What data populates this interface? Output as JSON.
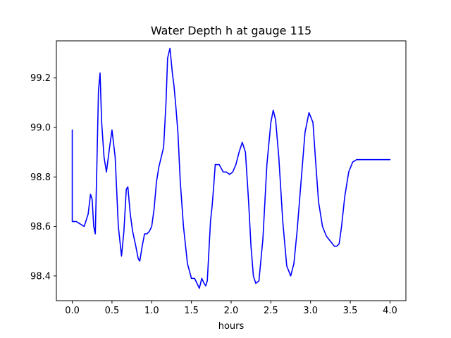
{
  "chart_data": {
    "type": "line",
    "title": "Water Depth h at gauge 115",
    "xlabel": "hours",
    "ylabel": "",
    "xlim": [
      -0.2,
      4.2
    ],
    "ylim": [
      98.3,
      99.35
    ],
    "xticks": [
      0.0,
      0.5,
      1.0,
      1.5,
      2.0,
      2.5,
      3.0,
      3.5,
      4.0
    ],
    "xtick_labels": [
      "0.0",
      "0.5",
      "1.0",
      "1.5",
      "2.0",
      "2.5",
      "3.0",
      "3.5",
      "4.0"
    ],
    "yticks": [
      98.4,
      98.6,
      98.8,
      99.0,
      99.2
    ],
    "ytick_labels": [
      "98.4",
      "98.6",
      "98.8",
      "99.0",
      "99.2"
    ],
    "grid": false,
    "color": "#0000ff",
    "series": [
      {
        "name": "",
        "x": [
          0.0,
          0.0,
          0.05,
          0.1,
          0.15,
          0.2,
          0.23,
          0.25,
          0.27,
          0.29,
          0.31,
          0.33,
          0.35,
          0.37,
          0.4,
          0.43,
          0.47,
          0.5,
          0.54,
          0.58,
          0.62,
          0.65,
          0.68,
          0.7,
          0.73,
          0.76,
          0.8,
          0.83,
          0.85,
          0.88,
          0.91,
          0.94,
          0.97,
          1.0,
          1.03,
          1.06,
          1.09,
          1.12,
          1.15,
          1.18,
          1.2,
          1.23,
          1.26,
          1.28,
          1.3,
          1.33,
          1.36,
          1.4,
          1.45,
          1.5,
          1.54,
          1.57,
          1.6,
          1.63,
          1.66,
          1.68,
          1.7,
          1.72,
          1.74,
          1.76,
          1.78,
          1.8,
          1.85,
          1.9,
          1.94,
          1.98,
          2.02,
          2.06,
          2.1,
          2.14,
          2.18,
          2.22,
          2.25,
          2.28,
          2.31,
          2.35,
          2.4,
          2.45,
          2.5,
          2.53,
          2.56,
          2.6,
          2.65,
          2.7,
          2.75,
          2.79,
          2.83,
          2.88,
          2.93,
          2.98,
          3.03,
          3.06,
          3.1,
          3.15,
          3.2,
          3.25,
          3.3,
          3.33,
          3.36,
          3.39,
          3.43,
          3.48,
          3.53,
          3.58,
          3.63,
          3.68,
          3.73,
          3.78,
          3.83,
          3.88,
          3.93,
          3.98,
          4.0
        ],
        "y": [
          98.99,
          98.62,
          98.62,
          98.61,
          98.6,
          98.65,
          98.73,
          98.71,
          98.6,
          98.57,
          98.85,
          99.15,
          99.22,
          99.02,
          98.88,
          98.82,
          98.92,
          98.99,
          98.88,
          98.6,
          98.48,
          98.58,
          98.75,
          98.76,
          98.65,
          98.58,
          98.52,
          98.47,
          98.46,
          98.52,
          98.57,
          98.57,
          98.58,
          98.6,
          98.67,
          98.78,
          98.84,
          98.88,
          98.92,
          99.1,
          99.28,
          99.32,
          99.22,
          99.17,
          99.1,
          98.98,
          98.78,
          98.6,
          98.45,
          98.39,
          98.39,
          98.37,
          98.35,
          98.39,
          98.37,
          98.36,
          98.38,
          98.5,
          98.62,
          98.68,
          98.76,
          98.85,
          98.85,
          98.82,
          98.82,
          98.81,
          98.82,
          98.85,
          98.9,
          98.94,
          98.9,
          98.7,
          98.52,
          98.4,
          98.37,
          98.38,
          98.55,
          98.85,
          99.02,
          99.07,
          99.03,
          98.88,
          98.62,
          98.44,
          98.4,
          98.45,
          98.58,
          98.78,
          98.98,
          99.06,
          99.02,
          98.88,
          98.7,
          98.6,
          98.56,
          98.54,
          98.52,
          98.52,
          98.53,
          98.6,
          98.72,
          98.82,
          98.86,
          98.87,
          98.87,
          98.87,
          98.87,
          98.87,
          98.87,
          98.87,
          98.87,
          98.87,
          98.87
        ]
      }
    ]
  }
}
